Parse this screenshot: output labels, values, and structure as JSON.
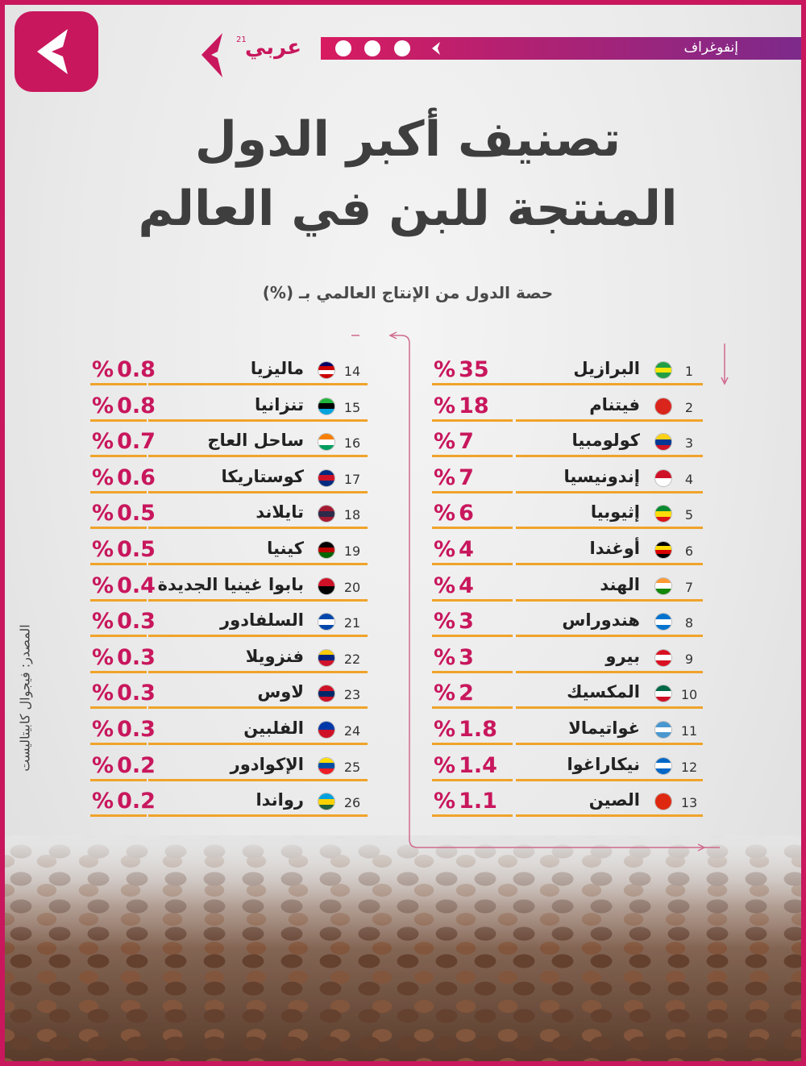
{
  "header": {
    "label": "إنفوغراف",
    "brand": "عربي",
    "brand_sup": "21"
  },
  "title": [
    "تصنيف أكبر الدول",
    "المنتجة للبن في العالم"
  ],
  "subtitle": "حصة الدول من الإنتاج العالمي بـ (%)",
  "unit": "%",
  "source": "المصدر: فيجوال كابيتاليست",
  "rows": [
    {
      "rank": "1",
      "country": "البرازيل",
      "share": "35",
      "flag": [
        "#229e45",
        "#f8e509",
        "#229e45"
      ]
    },
    {
      "rank": "2",
      "country": "فيتنام",
      "share": "18",
      "flag": [
        "#da251d",
        "#da251d",
        "#da251d"
      ]
    },
    {
      "rank": "3",
      "country": "كولومبيا",
      "share": "7",
      "flag": [
        "#fcd116",
        "#003893",
        "#ce1126"
      ]
    },
    {
      "rank": "4",
      "country": "إندونيسيا",
      "share": "7",
      "flag": [
        "#ce1126",
        "#ffffff"
      ]
    },
    {
      "rank": "5",
      "country": "إثيوبيا",
      "share": "6",
      "flag": [
        "#078930",
        "#fcdd09",
        "#da121a"
      ]
    },
    {
      "rank": "6",
      "country": "أوغندا",
      "share": "4",
      "flag": [
        "#000000",
        "#fcdc04",
        "#d90000",
        "#000000"
      ]
    },
    {
      "rank": "7",
      "country": "الهند",
      "share": "4",
      "flag": [
        "#ff9933",
        "#ffffff",
        "#138808"
      ]
    },
    {
      "rank": "8",
      "country": "هندوراس",
      "share": "3",
      "flag": [
        "#0073cf",
        "#ffffff",
        "#0073cf"
      ]
    },
    {
      "rank": "9",
      "country": "بيرو",
      "share": "3",
      "flag": [
        "#d91023",
        "#ffffff",
        "#d91023"
      ]
    },
    {
      "rank": "10",
      "country": "المكسيك",
      "share": "2",
      "flag": [
        "#006847",
        "#ffffff",
        "#ce1126"
      ]
    },
    {
      "rank": "11",
      "country": "غواتيمالا",
      "share": "1.8",
      "flag": [
        "#4997d0",
        "#ffffff",
        "#4997d0"
      ]
    },
    {
      "rank": "12",
      "country": "نيكاراغوا",
      "share": "1.4",
      "flag": [
        "#0067c6",
        "#ffffff",
        "#0067c6"
      ]
    },
    {
      "rank": "13",
      "country": "الصين",
      "share": "1.1",
      "flag": [
        "#de2910",
        "#de2910"
      ]
    },
    {
      "rank": "14",
      "country": "ماليزيا",
      "share": "0.8",
      "flag": [
        "#010066",
        "#cc0001",
        "#ffffff",
        "#cc0001"
      ]
    },
    {
      "rank": "15",
      "country": "تنزانيا",
      "share": "0.8",
      "flag": [
        "#1eb53a",
        "#000000",
        "#00a3dd"
      ]
    },
    {
      "rank": "16",
      "country": "ساحل العاج",
      "share": "0.7",
      "flag": [
        "#f77f00",
        "#ffffff",
        "#009e60"
      ]
    },
    {
      "rank": "17",
      "country": "كوستاريكا",
      "share": "0.6",
      "flag": [
        "#002b7f",
        "#ce1126",
        "#002b7f"
      ]
    },
    {
      "rank": "18",
      "country": "تايلاند",
      "share": "0.5",
      "flag": [
        "#a51931",
        "#2d2a4a",
        "#a51931"
      ]
    },
    {
      "rank": "19",
      "country": "كينيا",
      "share": "0.5",
      "flag": [
        "#000000",
        "#bb0000",
        "#006600"
      ]
    },
    {
      "rank": "20",
      "country": "بابوا غينيا الجديدة",
      "share": "0.4",
      "flag": [
        "#ce1126",
        "#000000"
      ]
    },
    {
      "rank": "21",
      "country": "السلفادور",
      "share": "0.3",
      "flag": [
        "#0047ab",
        "#ffffff",
        "#0047ab"
      ]
    },
    {
      "rank": "22",
      "country": "فنزويلا",
      "share": "0.3",
      "flag": [
        "#ffcc00",
        "#00247d",
        "#cf142b"
      ]
    },
    {
      "rank": "23",
      "country": "لاوس",
      "share": "0.3",
      "flag": [
        "#ce1126",
        "#002868",
        "#ce1126"
      ]
    },
    {
      "rank": "24",
      "country": "الفلبين",
      "share": "0.3",
      "flag": [
        "#0038a8",
        "#ce1126"
      ]
    },
    {
      "rank": "25",
      "country": "الإكوادور",
      "share": "0.2",
      "flag": [
        "#ffdd00",
        "#034ea2",
        "#ed1c24"
      ]
    },
    {
      "rank": "26",
      "country": "رواندا",
      "share": "0.2",
      "flag": [
        "#00a1de",
        "#fad201",
        "#20603d"
      ]
    }
  ]
}
